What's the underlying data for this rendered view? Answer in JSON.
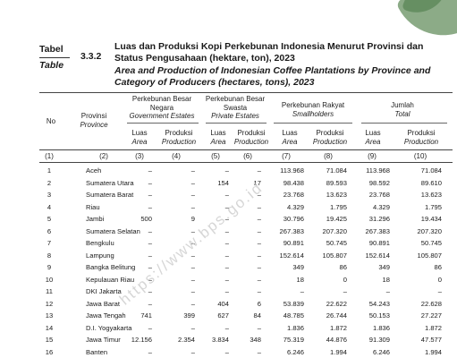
{
  "header": {
    "tabel_label": "Tabel",
    "table_label": "Table",
    "table_number": "3.3.2",
    "title_id": "Luas dan Produksi Kopi Perkebunan Indonesia Menurut Provinsi dan Status Pengusahaan (hektare, ton), 2023",
    "title_en": "Area and Production of Indonesian Coffee Plantations by Province and Category of Producers (hectares, tons), 2023"
  },
  "columns": {
    "no": "No",
    "prov_id": "Provinsi",
    "prov_en": "Province",
    "gov_id": "Perkebunan Besar Negara",
    "gov_en": "Government Estates",
    "priv_id": "Perkebunan Besar Swasta",
    "priv_en": "Private Estates",
    "small_id": "Perkebunan Rakyat",
    "small_en": "Smallholders",
    "total_id": "Jumlah",
    "total_en": "Total",
    "luas": "Luas",
    "area": "Area",
    "produksi": "Produksi",
    "production": "Production",
    "numbers": [
      "(1)",
      "(2)",
      "(3)",
      "(4)",
      "(5)",
      "(6)",
      "(7)",
      "(8)",
      "(9)",
      "(10)"
    ]
  },
  "rows": [
    {
      "no": "1",
      "prov": "Aceh",
      "v": [
        "–",
        "–",
        "–",
        "–",
        "113.968",
        "71.084",
        "113.968",
        "71.084"
      ]
    },
    {
      "no": "2",
      "prov": "Sumatera Utara",
      "v": [
        "–",
        "–",
        "154",
        "17",
        "98.438",
        "89.593",
        "98.592",
        "89.610"
      ]
    },
    {
      "no": "3",
      "prov": "Sumatera Barat",
      "v": [
        "–",
        "–",
        "–",
        "–",
        "23.768",
        "13.623",
        "23.768",
        "13.623"
      ]
    },
    {
      "no": "4",
      "prov": "Riau",
      "v": [
        "–",
        "–",
        "–",
        "–",
        "4.329",
        "1.795",
        "4.329",
        "1.795"
      ]
    },
    {
      "no": "5",
      "prov": "Jambi",
      "v": [
        "500",
        "9",
        "–",
        "–",
        "30.796",
        "19.425",
        "31.296",
        "19.434"
      ]
    },
    {
      "no": "6",
      "prov": "Sumatera Selatan",
      "v": [
        "–",
        "–",
        "–",
        "–",
        "267.383",
        "207.320",
        "267.383",
        "207.320"
      ]
    },
    {
      "no": "7",
      "prov": "Bengkulu",
      "v": [
        "–",
        "–",
        "–",
        "–",
        "90.891",
        "50.745",
        "90.891",
        "50.745"
      ]
    },
    {
      "no": "8",
      "prov": "Lampung",
      "v": [
        "–",
        "–",
        "–",
        "–",
        "152.614",
        "105.807",
        "152.614",
        "105.807"
      ]
    },
    {
      "no": "9",
      "prov": "Bangka Belitung",
      "v": [
        "–",
        "–",
        "–",
        "–",
        "349",
        "86",
        "349",
        "86"
      ]
    },
    {
      "no": "10",
      "prov": "Kepulauan Riau",
      "v": [
        "–",
        "–",
        "–",
        "–",
        "18",
        "0",
        "18",
        "0"
      ]
    },
    {
      "no": "11",
      "prov": "DKI Jakarta",
      "v": [
        "–",
        "–",
        "–",
        "–",
        "–",
        "–",
        "–",
        "–"
      ]
    },
    {
      "no": "12",
      "prov": "Jawa Barat",
      "v": [
        "–",
        "–",
        "404",
        "6",
        "53.839",
        "22.622",
        "54.243",
        "22.628"
      ]
    },
    {
      "no": "13",
      "prov": "Jawa Tengah",
      "v": [
        "741",
        "399",
        "627",
        "84",
        "48.785",
        "26.744",
        "50.153",
        "27.227"
      ]
    },
    {
      "no": "14",
      "prov": "D.I. Yogyakarta",
      "v": [
        "–",
        "–",
        "–",
        "–",
        "1.836",
        "1.872",
        "1.836",
        "1.872"
      ]
    },
    {
      "no": "15",
      "prov": "Jawa Timur",
      "v": [
        "12.156",
        "2.354",
        "3.834",
        "348",
        "75.319",
        "44.876",
        "91.309",
        "47.577"
      ]
    },
    {
      "no": "16",
      "prov": "Banten",
      "v": [
        "–",
        "–",
        "–",
        "–",
        "6.246",
        "1.994",
        "6.246",
        "1.994"
      ]
    }
  ],
  "watermark": "https://www.bps.go.id"
}
